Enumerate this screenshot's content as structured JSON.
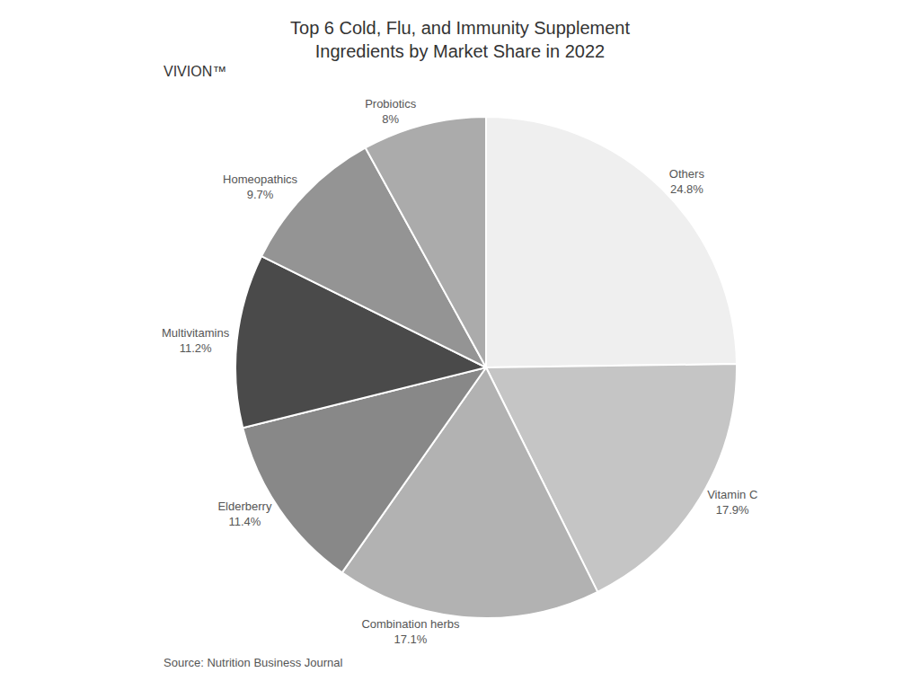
{
  "chart_data": {
    "type": "pie",
    "title": "Top 6 Cold, Flu, and Immunity Supplement\nIngredients by Market Share in 2022",
    "categories": [
      "Others",
      "Vitamin C",
      "Combination herbs",
      "Elderberry",
      "Multivitamins",
      "Homeopathics",
      "Probiotics"
    ],
    "values": [
      24.8,
      17.9,
      17.1,
      11.4,
      11.2,
      9.7,
      8.0
    ],
    "value_labels": [
      "24.8%",
      "17.9%",
      "17.1%",
      "11.4%",
      "11.2%",
      "9.7%",
      "8%"
    ],
    "colors": [
      "#efefef",
      "#c5c5c5",
      "#b2b2b2",
      "#888888",
      "#4a4a4a",
      "#949494",
      "#ababab"
    ],
    "data_labels": true,
    "annotations": [
      "Source: Nutrition Business Journal",
      "VIVION™"
    ]
  }
}
